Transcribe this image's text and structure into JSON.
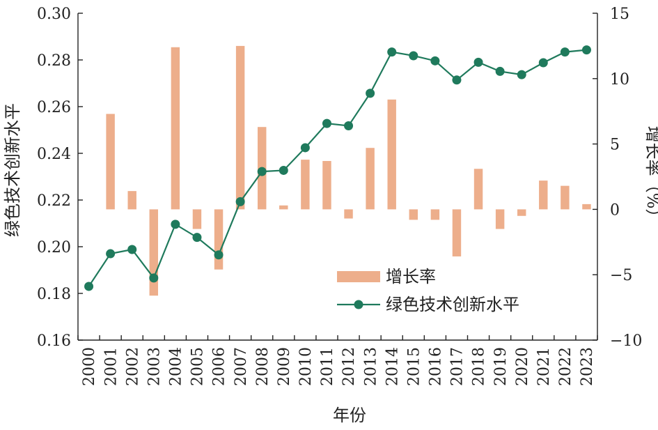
{
  "chart_data": {
    "type": "bar+line",
    "x_title": "年份",
    "y_left_title": "绿色技术创新水平",
    "y_right_title": "增长率（%）",
    "y_left_lim": [
      0.16,
      0.3
    ],
    "y_left_ticks": [
      "0.16",
      "0.18",
      "0.20",
      "0.22",
      "0.24",
      "0.26",
      "0.28",
      "0.30"
    ],
    "y_right_lim": [
      -10,
      15
    ],
    "y_right_ticks": [
      "−10",
      "−5",
      "0",
      "5",
      "10",
      "15"
    ],
    "categories": [
      "2000",
      "2001",
      "2002",
      "2003",
      "2004",
      "2005",
      "2006",
      "2007",
      "2008",
      "2009",
      "2010",
      "2011",
      "2012",
      "2013",
      "2014",
      "2015",
      "2016",
      "2017",
      "2018",
      "2019",
      "2020",
      "2021",
      "2022",
      "2023"
    ],
    "series": [
      {
        "name": "增长率",
        "type": "bar",
        "axis": "right",
        "color": "#EDAE8B",
        "values": [
          null,
          7.3,
          1.4,
          -6.6,
          12.4,
          -1.5,
          -4.6,
          12.5,
          6.3,
          0.3,
          3.8,
          3.7,
          -0.7,
          4.7,
          8.4,
          -0.8,
          -0.8,
          -3.6,
          3.1,
          -1.5,
          -0.5,
          2.2,
          1.8,
          0.4
        ]
      },
      {
        "name": "绿色技术创新水平",
        "type": "line",
        "axis": "left",
        "color": "#1F7A5C",
        "values": [
          0.183,
          0.197,
          0.1988,
          0.1866,
          0.2096,
          0.204,
          0.1965,
          0.2193,
          0.2322,
          0.2327,
          0.2424,
          0.2528,
          0.2518,
          0.2657,
          0.2834,
          0.2818,
          0.2796,
          0.2714,
          0.279,
          0.2751,
          0.2737,
          0.2788,
          0.2834,
          0.2843
        ]
      }
    ],
    "legend": {
      "placement": "center-right"
    },
    "grid": false
  }
}
